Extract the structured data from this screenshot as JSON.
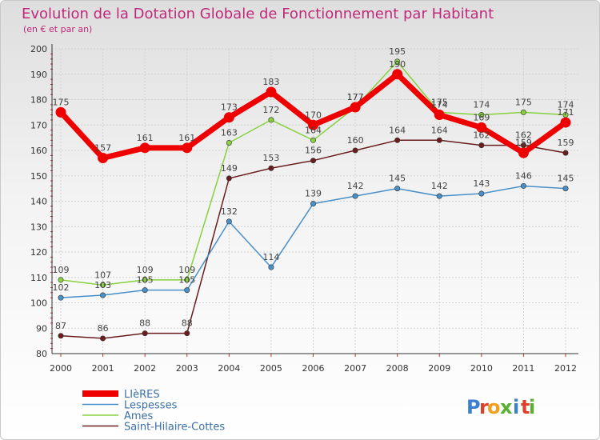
{
  "chart_data": {
    "type": "line",
    "title": "Evolution de la Dotation Globale de Fonctionnement par Habitant",
    "subtitle": "(en € et par an)",
    "xlabel": "",
    "ylabel": "",
    "ylim": [
      80,
      200
    ],
    "yticks": [
      80,
      90,
      100,
      110,
      120,
      130,
      140,
      150,
      160,
      170,
      180,
      190,
      200
    ],
    "categories": [
      "2000",
      "2001",
      "2002",
      "2003",
      "2004",
      "2005",
      "2006",
      "2007",
      "2008",
      "2009",
      "2010",
      "2011",
      "2012"
    ],
    "grid": true,
    "legend_position": "bottom-left",
    "series": [
      {
        "name": "Saint-Hilaire-Cottes",
        "color": "#6b1d1d",
        "values": [
          87,
          86,
          88,
          88,
          149,
          153,
          156,
          160,
          164,
          164,
          162,
          162,
          159
        ]
      },
      {
        "name": "Lespesses",
        "color": "#4a90c8",
        "values": [
          102,
          103,
          105,
          105,
          132,
          114,
          139,
          142,
          145,
          142,
          143,
          146,
          145
        ]
      },
      {
        "name": "Ames",
        "color": "#88d040",
        "values": [
          109,
          107,
          109,
          109,
          163,
          172,
          164,
          177,
          195,
          175,
          174,
          175,
          174
        ]
      },
      {
        "name": "LIèRES",
        "color": "#ee0000",
        "values": [
          175,
          157,
          161,
          161,
          173,
          183,
          170,
          177,
          190,
          174,
          169,
          159,
          171
        ]
      }
    ],
    "legend_order": [
      "LIèRES",
      "Lespesses",
      "Ames",
      "Saint-Hilaire-Cottes"
    ]
  },
  "logo": {
    "letters": [
      "P",
      "r",
      "o",
      "x",
      "i",
      "t",
      "i"
    ],
    "colors": [
      "#3a7fd0",
      "#e0402a",
      "#f0a020",
      "#58b030",
      "#3a7fd0",
      "#e0402a",
      "#58b030"
    ]
  }
}
